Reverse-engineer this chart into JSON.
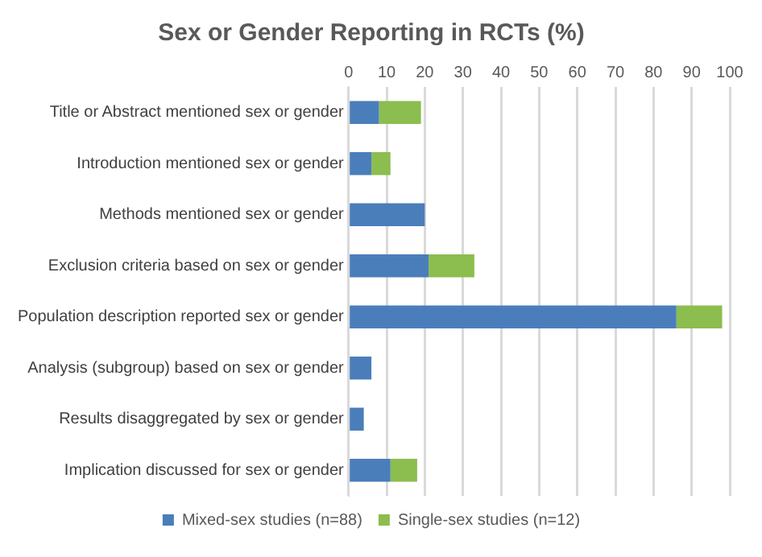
{
  "chart_data": {
    "type": "bar",
    "title": "Sex or Gender Reporting in RCTs (%)",
    "orientation": "horizontal",
    "stacked": true,
    "categories": [
      "Title or Abstract mentioned sex or gender",
      "Introduction mentioned sex or gender",
      "Methods mentioned sex or gender",
      "Exclusion criteria based on sex or gender",
      "Population description reported sex or gender",
      "Analysis (subgroup) based on sex or gender",
      "Results disaggregated by sex or gender",
      "Implication discussed for sex or gender"
    ],
    "series": [
      {
        "name": "Mixed-sex studies (n=88)",
        "color": "#4a7ebb",
        "values": [
          8,
          6,
          20,
          21,
          86,
          6,
          4,
          11
        ]
      },
      {
        "name": "Single-sex studies (n=12)",
        "color": "#8cbd4f",
        "values": [
          11,
          5,
          0,
          12,
          12,
          0,
          0,
          7
        ]
      }
    ],
    "xlim": [
      0,
      100
    ],
    "xticks": [
      0,
      10,
      20,
      30,
      40,
      50,
      60,
      70,
      80,
      90,
      100
    ],
    "grid": "x",
    "legend": "bottom"
  }
}
